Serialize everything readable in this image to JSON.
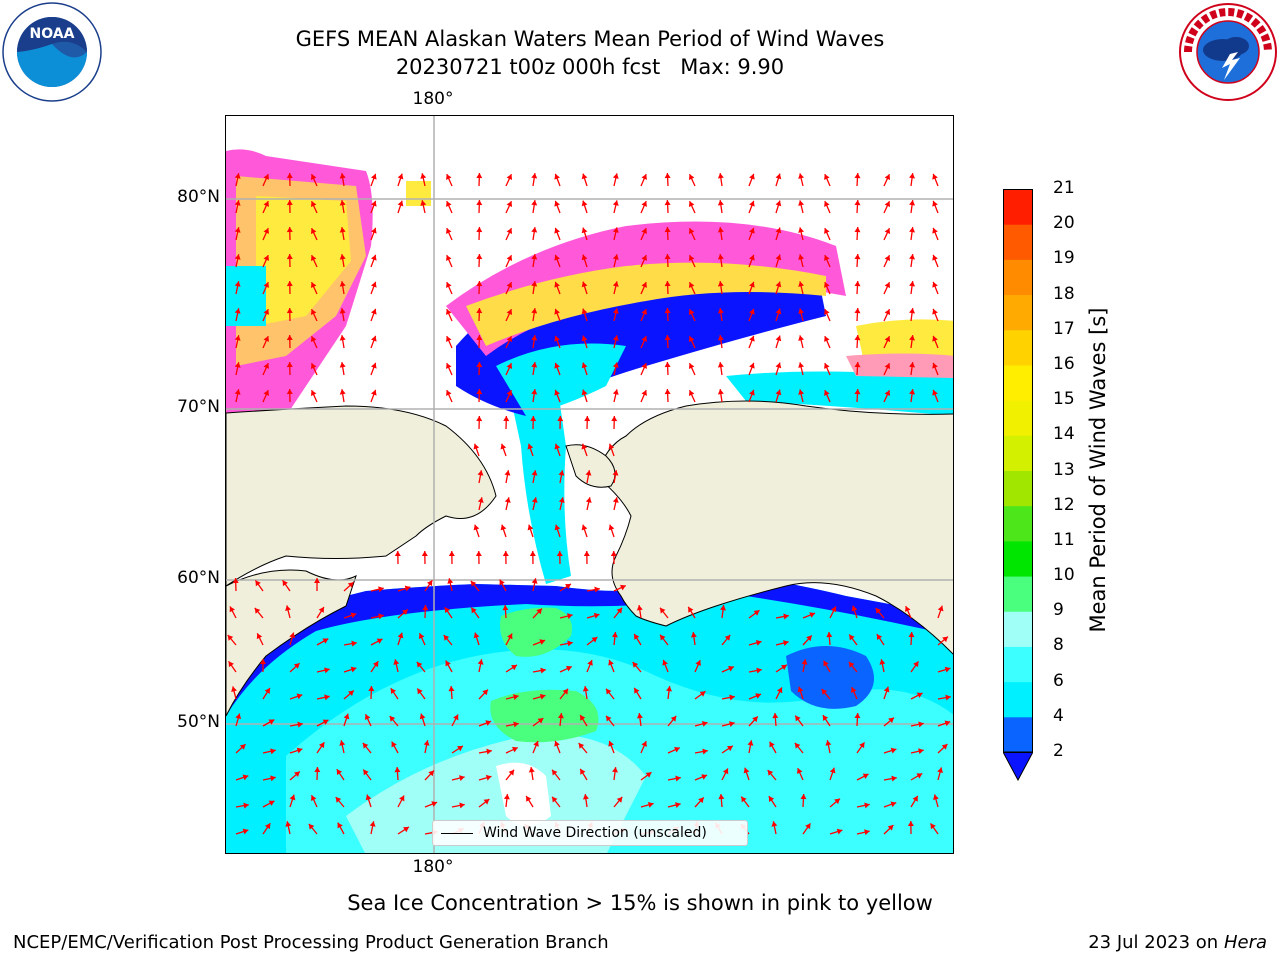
{
  "header": {
    "title_line1": "GEFS MEAN Alaskan Waters Mean Period of Wind Waves",
    "title_line2": "20230721 t00z 000h fcst   Max: 9.90"
  },
  "logos": {
    "left": {
      "icon": "noaa-logo",
      "text": "NOAA"
    },
    "right": {
      "icon": "nws-logo",
      "text": "NATIONAL WEATHER SERVICE"
    }
  },
  "map": {
    "lon_label_top": "180°",
    "lon_label_bottom": "180°",
    "lat_labels": [
      "80°N",
      "70°N",
      "60°N",
      "50°N"
    ],
    "land_color": "#efefdc",
    "ocean_colors": {
      "2": "#0a14ff",
      "4": "#00f0ff",
      "6": "#3cffff",
      "8": "#a0fff7",
      "9": "#4bff7e"
    },
    "ice_colors": [
      "#ff59d9",
      "#ff9bb6",
      "#ffc46b",
      "#ffdc48",
      "#ffea40"
    ],
    "arrow_color": "#ff0000"
  },
  "legend": {
    "label": "Wind Wave Direction (unscaled)"
  },
  "colorbar": {
    "label": "Mean Period of Wind Waves [s]",
    "ticks": [
      "2",
      "4",
      "6",
      "8",
      "9",
      "10",
      "11",
      "12",
      "13",
      "14",
      "15",
      "16",
      "17",
      "18",
      "19",
      "20",
      "21"
    ],
    "colors": [
      "#0a64ff",
      "#00f0ff",
      "#3cffff",
      "#a0fff7",
      "#4bff7e",
      "#00e600",
      "#4ce61a",
      "#a0e600",
      "#d2f000",
      "#f0f000",
      "#ffee00",
      "#ffd200",
      "#ffaa00",
      "#ff8c00",
      "#ff5a00",
      "#ff1e00"
    ],
    "under_color": "#0a14ff"
  },
  "footer": {
    "note": "Sea Ice Concentration > 15% is shown in pink to yellow",
    "left": "NCEP/EMC/Verification Post Processing Product Generation Branch",
    "right_prefix": "23 Jul 2023 on ",
    "right_machine": "Hera"
  }
}
